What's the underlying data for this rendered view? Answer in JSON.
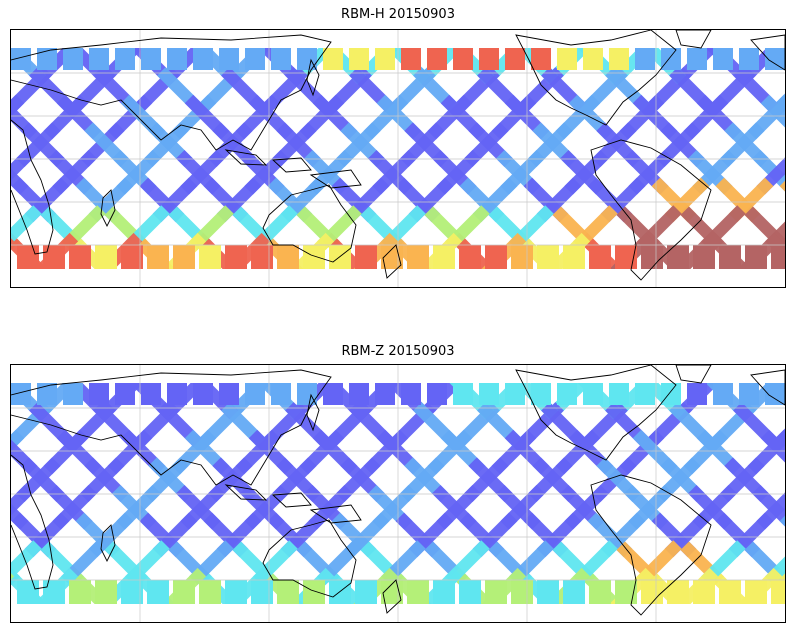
{
  "figure": {
    "panels": [
      {
        "id": "h",
        "title": "RBM-H 20150903",
        "intensity": "high"
      },
      {
        "id": "z",
        "title": "RBM-Z 20150903",
        "intensity": "low"
      }
    ],
    "colors": {
      "blue": "#6464f5",
      "lightblue": "#64aaf5",
      "cyan": "#5fe6f0",
      "green": "#b4f078",
      "yellow": "#f5f064",
      "orange": "#fab450",
      "red": "#ef6450",
      "darkred": "#b46464"
    },
    "swath_pattern": "crossing-orbital-swaths",
    "colormap": "jet"
  }
}
